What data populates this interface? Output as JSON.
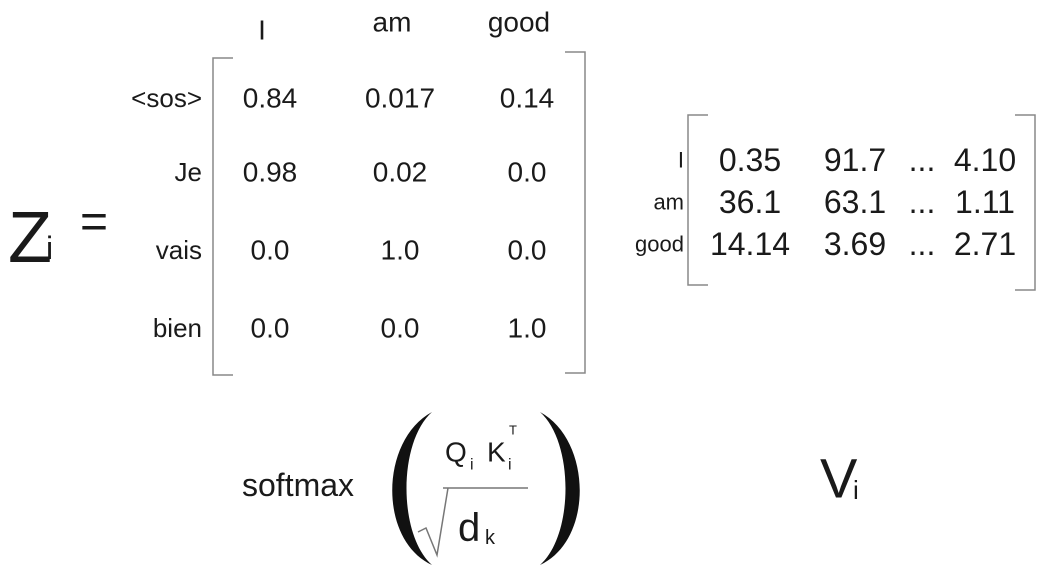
{
  "z_label": {
    "main": "Z",
    "sub": "i"
  },
  "equals": "=",
  "attention": {
    "columns": [
      "I",
      "am",
      "good"
    ],
    "rows": [
      {
        "label": "<sos>",
        "values": [
          "0.84",
          "0.017",
          "0.14"
        ]
      },
      {
        "label": "Je",
        "values": [
          "0.98",
          "0.02",
          "0.0"
        ]
      },
      {
        "label": "vais",
        "values": [
          "0.0",
          "1.0",
          "0.0"
        ]
      },
      {
        "label": "bien",
        "values": [
          "0.0",
          "0.0",
          "1.0"
        ]
      }
    ]
  },
  "v_matrix": {
    "rows": [
      {
        "label": "I",
        "values": [
          "0.35",
          "91.7",
          "...",
          "4.10"
        ]
      },
      {
        "label": "am",
        "values": [
          "36.1",
          "63.1",
          "...",
          "1.11"
        ]
      },
      {
        "label": "good",
        "values": [
          "14.14",
          "3.69",
          "...",
          "2.71"
        ]
      }
    ]
  },
  "formula": {
    "function": "softmax",
    "q": "Q",
    "q_sub": "i",
    "k": "K",
    "k_sup": "T",
    "k_sub": "i",
    "d": "d",
    "d_sub": "k"
  },
  "v_label": {
    "main": "V",
    "sub": "i"
  }
}
